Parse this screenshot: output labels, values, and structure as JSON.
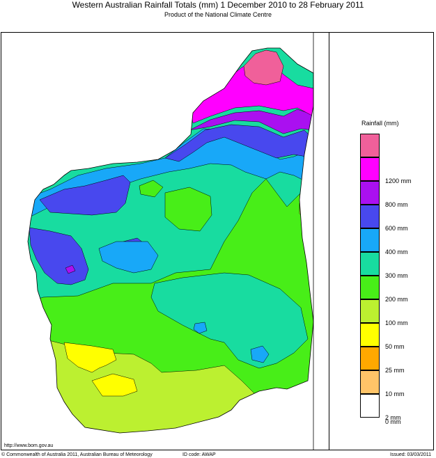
{
  "header": {
    "title": "Western Australian Rainfall Totals (mm) 1 December 2010 to 28 February 2011",
    "subtitle": "Product of the National Climate Centre"
  },
  "legend": {
    "title": "Rainfall (mm)",
    "bins": [
      {
        "color": "#f0609a",
        "label": ""
      },
      {
        "color": "#ff00ff",
        "label": "1200 mm"
      },
      {
        "color": "#aa10f0",
        "label": "800 mm"
      },
      {
        "color": "#4848ee",
        "label": "600 mm"
      },
      {
        "color": "#18a8f8",
        "label": "400 mm"
      },
      {
        "color": "#18dca0",
        "label": "300 mm"
      },
      {
        "color": "#48ee18",
        "label": "200 mm"
      },
      {
        "color": "#bcf030",
        "label": "100 mm"
      },
      {
        "color": "#ffff00",
        "label": "50 mm"
      },
      {
        "color": "#ffa800",
        "label": "25 mm"
      },
      {
        "color": "#ffc468",
        "label": "10 mm"
      },
      {
        "color": "#ffffff",
        "label": "2 mm"
      }
    ],
    "bottom_label": "0 mm"
  },
  "footer": {
    "url": "http://www.bom.gov.au",
    "copyright": "© Commonwealth of Australia 2011, Australian Bureau of Meteorology",
    "id_code": "ID code: AWAP",
    "issued": "Issued: 03/03/2011"
  }
}
